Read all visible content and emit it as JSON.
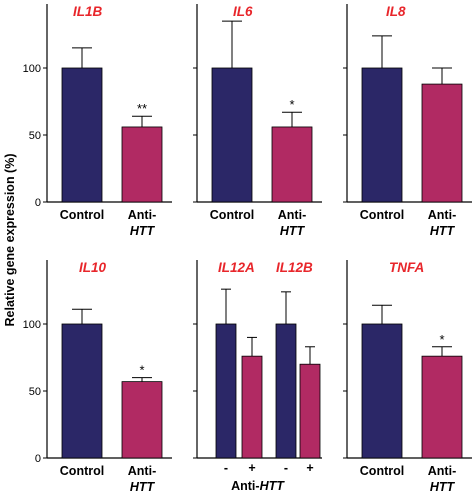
{
  "ylabel": "Relative gene expression (%)",
  "colors": {
    "control": "#2b2767",
    "anti": "#b12a63",
    "title": "#e8262b"
  },
  "chart_data": [
    {
      "type": "bar",
      "title": "IL1B",
      "ylim": [
        0,
        130
      ],
      "yticks": [
        0,
        50,
        100
      ],
      "bars": [
        {
          "label": "Control",
          "value": 100,
          "error": 15,
          "group": "control",
          "sig": ""
        },
        {
          "label": "Anti-HTT",
          "value": 56,
          "error": 8,
          "group": "anti",
          "sig": "**"
        }
      ]
    },
    {
      "type": "bar",
      "title": "IL6",
      "ylim": [
        0,
        130
      ],
      "yticks": [
        0,
        50,
        100
      ],
      "bars": [
        {
          "label": "Control",
          "value": 100,
          "error": 35,
          "group": "control",
          "sig": ""
        },
        {
          "label": "Anti-HTT",
          "value": 56,
          "error": 11,
          "group": "anti",
          "sig": "*"
        }
      ]
    },
    {
      "type": "bar",
      "title": "IL8",
      "ylim": [
        0,
        130
      ],
      "yticks": [
        0,
        50,
        100
      ],
      "bars": [
        {
          "label": "Control",
          "value": 100,
          "error": 24,
          "group": "control",
          "sig": ""
        },
        {
          "label": "Anti-HTT",
          "value": 88,
          "error": 12,
          "group": "anti",
          "sig": ""
        }
      ]
    },
    {
      "type": "bar",
      "title": "IL10",
      "ylim": [
        0,
        130
      ],
      "yticks": [
        0,
        50,
        100
      ],
      "bars": [
        {
          "label": "Control",
          "value": 100,
          "error": 11,
          "group": "control",
          "sig": ""
        },
        {
          "label": "Anti-HTT",
          "value": 57,
          "error": 3,
          "group": "anti",
          "sig": "*"
        }
      ]
    },
    {
      "type": "bar",
      "titles": [
        "IL12A",
        "IL12B"
      ],
      "ylim": [
        0,
        130
      ],
      "yticks": [
        0,
        50,
        100
      ],
      "xgroup_label_prefix": "Anti-",
      "xgroup_label_italic": "HTT",
      "bars": [
        {
          "label": "-",
          "value": 100,
          "error": 26,
          "group": "control",
          "gene": "IL12A"
        },
        {
          "label": "+",
          "value": 76,
          "error": 14,
          "group": "anti",
          "gene": "IL12A"
        },
        {
          "label": "-",
          "value": 100,
          "error": 24,
          "group": "control",
          "gene": "IL12B"
        },
        {
          "label": "+",
          "value": 70,
          "error": 13,
          "group": "anti",
          "gene": "IL12B"
        }
      ]
    },
    {
      "type": "bar",
      "title": "TNFA",
      "ylim": [
        0,
        130
      ],
      "yticks": [
        0,
        50,
        100
      ],
      "bars": [
        {
          "label": "Control",
          "value": 100,
          "error": 14,
          "group": "control",
          "sig": ""
        },
        {
          "label": "Anti-HTT",
          "value": 76,
          "error": 7,
          "group": "anti",
          "sig": "*"
        }
      ]
    }
  ]
}
